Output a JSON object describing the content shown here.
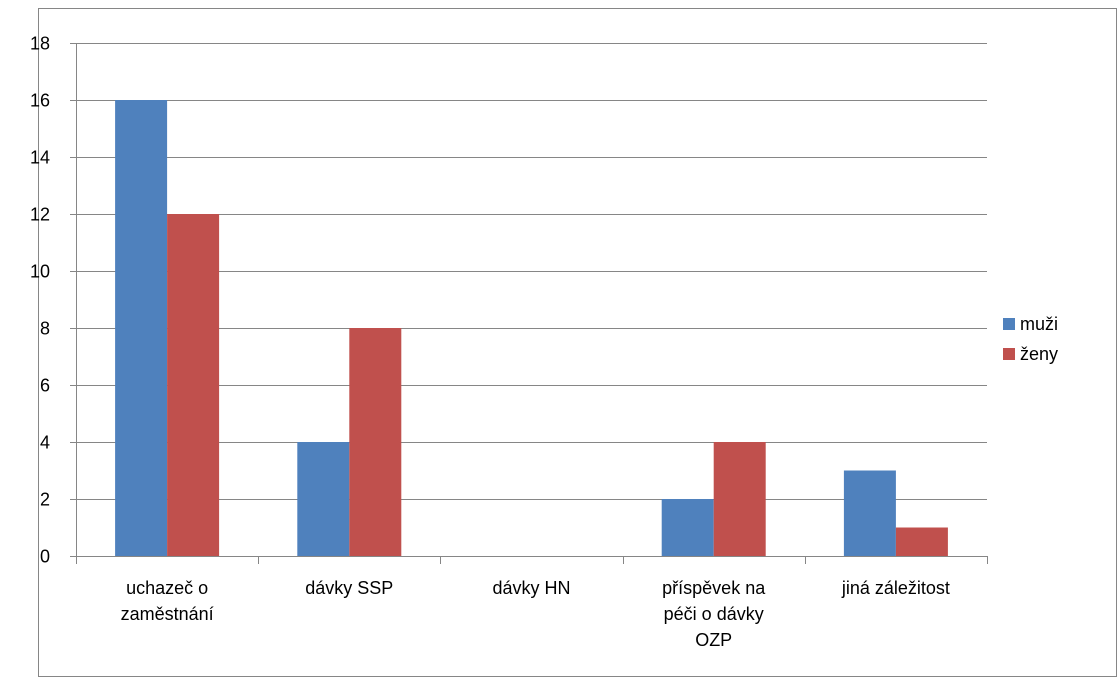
{
  "chart_data": {
    "type": "bar",
    "categories": [
      [
        "uchazeč o",
        "zaměstnání"
      ],
      [
        "dávky SSP"
      ],
      [
        "dávky HN"
      ],
      [
        "příspěvek na",
        "péči o dávky",
        "OZP"
      ],
      [
        "jiná záležitost"
      ]
    ],
    "series": [
      {
        "name": "muži",
        "color": "#4f81bd",
        "values": [
          16,
          4,
          0,
          2,
          3
        ]
      },
      {
        "name": "ženy",
        "color": "#c0504d",
        "values": [
          12,
          8,
          0,
          4,
          1
        ]
      }
    ],
    "ylim": [
      0,
      18
    ],
    "yticks": [
      "0",
      "2",
      "4",
      "6",
      "8",
      "10",
      "12",
      "14",
      "16",
      "18"
    ],
    "grid": true,
    "legend_position": "right",
    "title": "",
    "xlabel": "",
    "ylabel": ""
  }
}
